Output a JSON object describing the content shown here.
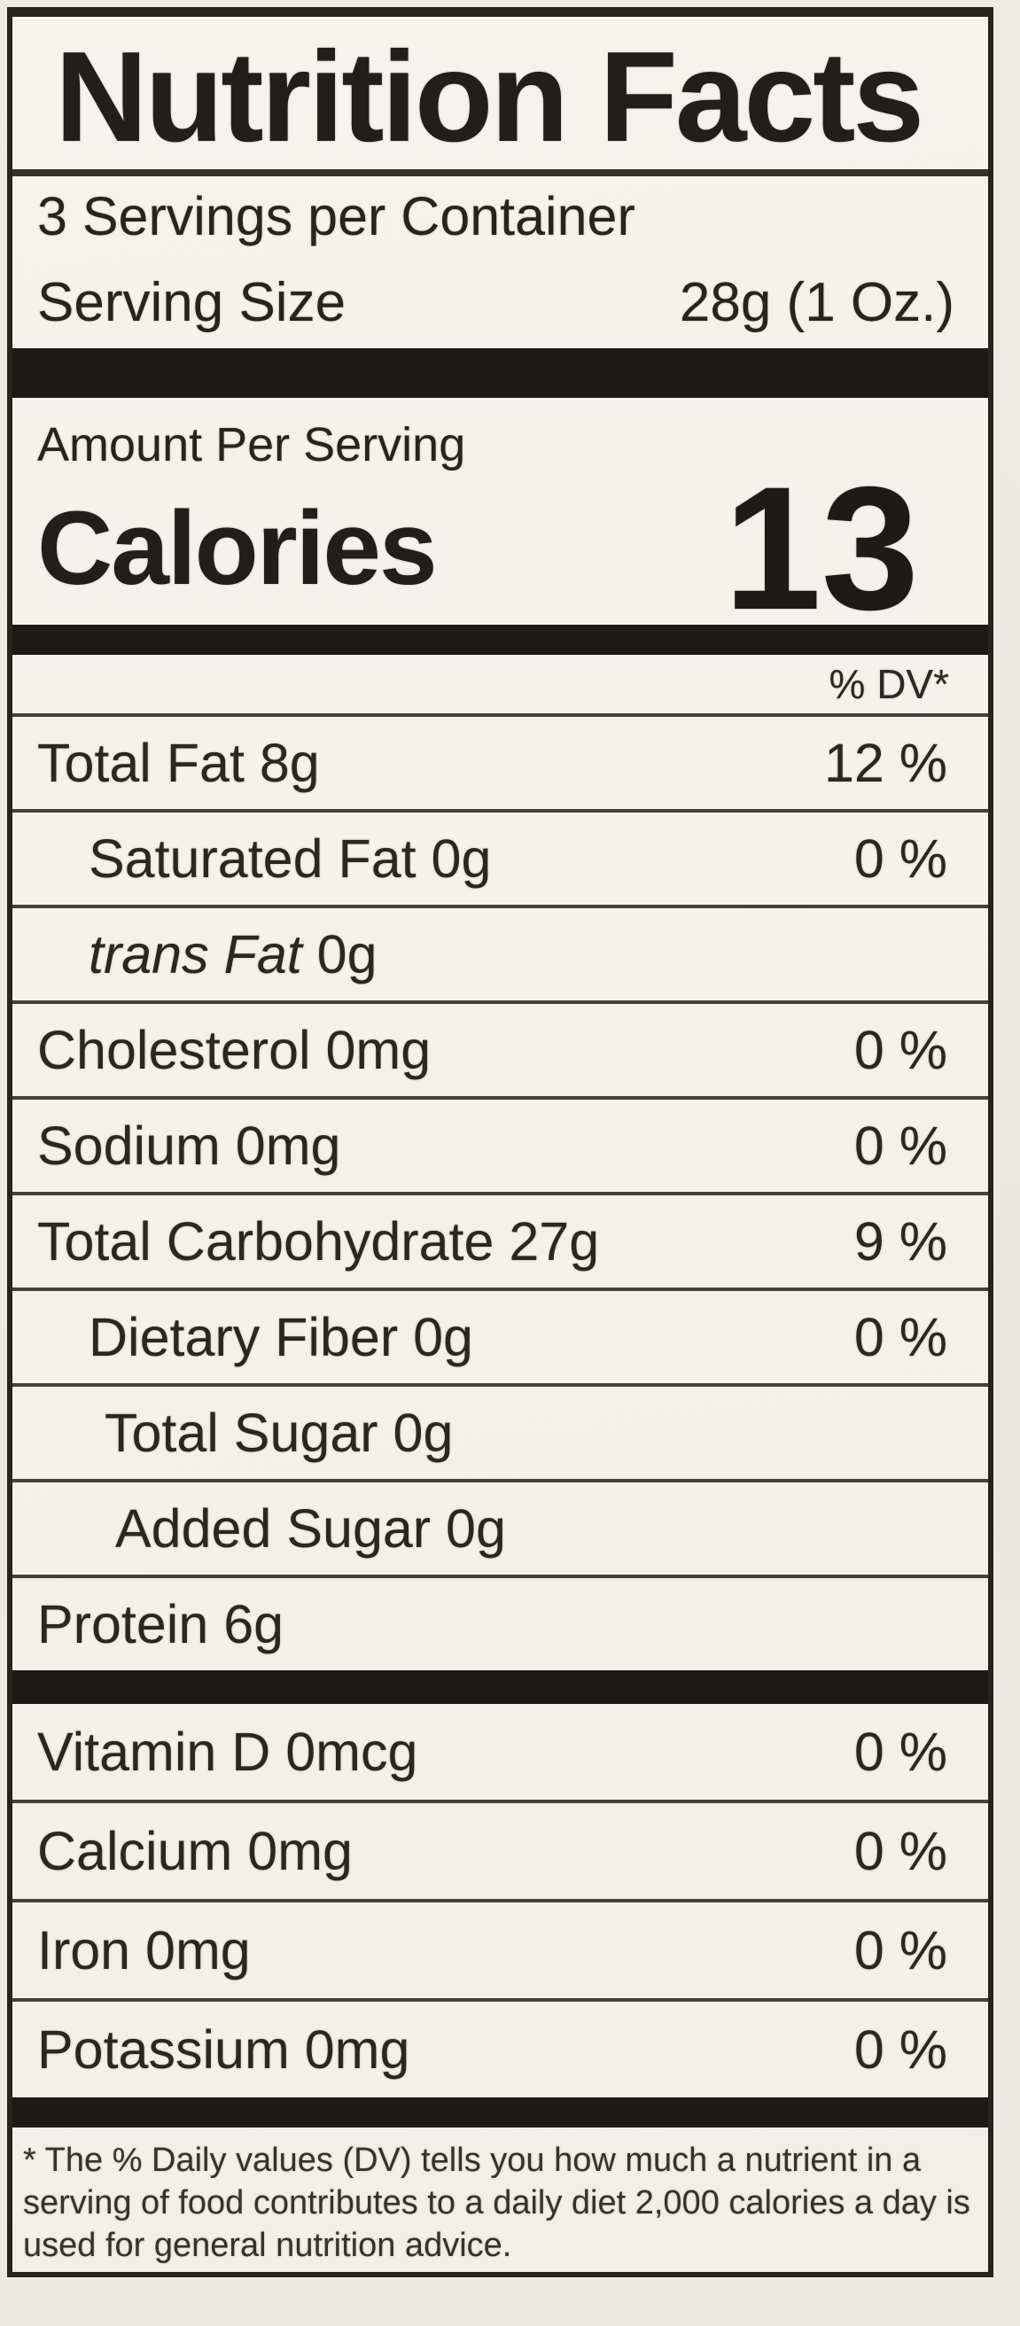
{
  "label": {
    "title": "Nutrition Facts",
    "servings_per_container": "3 Servings per Container",
    "serving_size_label": "Serving Size",
    "serving_size_value": "28g (1 Oz.)",
    "amount_per_serving": "Amount Per Serving",
    "calories_label": "Calories",
    "calories_value": "13",
    "dv_header": "% DV*",
    "rows": [
      {
        "italic": "",
        "name": "Total Fat 8g",
        "dv": "12 %"
      },
      {
        "italic": "",
        "name": "Saturated Fat 0g",
        "dv": "0 %"
      },
      {
        "italic": "trans Fat",
        "name": " 0g",
        "dv": ""
      },
      {
        "italic": "",
        "name": "Cholesterol 0mg",
        "dv": "0 %"
      },
      {
        "italic": "",
        "name": "Sodium 0mg",
        "dv": "0 %"
      },
      {
        "italic": "",
        "name": "Total Carbohydrate 27g",
        "dv": "9 %"
      },
      {
        "italic": "",
        "name": "Dietary Fiber 0g",
        "dv": "0 %"
      },
      {
        "italic": "",
        "name": "Total Sugar 0g",
        "dv": ""
      },
      {
        "italic": "",
        "name": "Added Sugar 0g",
        "dv": ""
      },
      {
        "italic": "",
        "name": "Protein 6g",
        "dv": ""
      }
    ],
    "vitamin_rows": [
      {
        "name": "Vitamin D 0mcg",
        "dv": "0 %"
      },
      {
        "name": "Calcium 0mg",
        "dv": "0 %"
      },
      {
        "name": "Iron 0mg",
        "dv": "0 %"
      },
      {
        "name": "Potassium 0mg",
        "dv": "0 %"
      }
    ],
    "footnote": "* The % Daily values (DV) tells you how much a nutrient in a serving of food contributes to a daily diet 2,000 calories a day is used for general nutrition advice.",
    "colors": {
      "label_background": "#f3f1ea",
      "text": "#26241f",
      "divider": "#45413a",
      "thick_bar": "#1b1a17"
    }
  }
}
